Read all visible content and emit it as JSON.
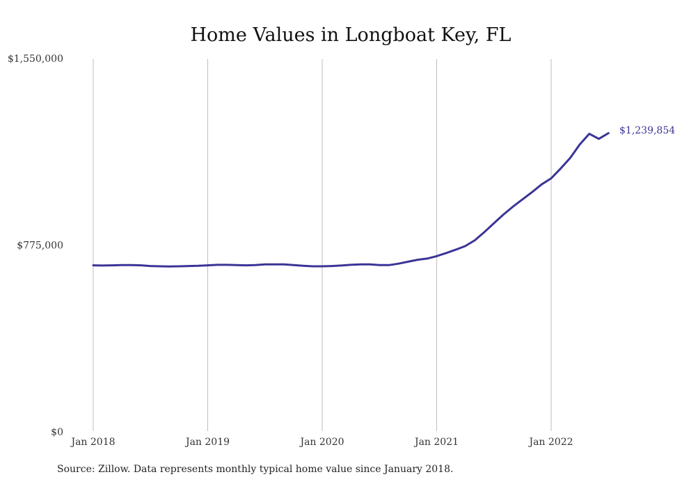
{
  "chart_data": {
    "type": "line",
    "title": "Home Values in Longboat Key, FL",
    "xlabel": "",
    "ylabel": "",
    "ylim": [
      0,
      1550000
    ],
    "y_ticks": [
      "$1,550,000",
      "$775,000",
      "$0"
    ],
    "y_tick_values": [
      1550000,
      775000,
      0
    ],
    "x_ticks": [
      "Jan 2018",
      "Jan 2019",
      "Jan 2020",
      "Jan 2021",
      "Jan 2022"
    ],
    "x_tick_values": [
      "2018-01",
      "2019-01",
      "2020-01",
      "2021-01",
      "2022-01"
    ],
    "grid": "vertical",
    "line_color": "#3a3496",
    "end_label": "$1,239,854",
    "series": [
      {
        "x": [
          "2018-01",
          "2018-02",
          "2018-03",
          "2018-04",
          "2018-05",
          "2018-06",
          "2018-07",
          "2018-08",
          "2018-09",
          "2018-10",
          "2018-11",
          "2018-12",
          "2019-01",
          "2019-02",
          "2019-03",
          "2019-04",
          "2019-05",
          "2019-06",
          "2019-07",
          "2019-08",
          "2019-09",
          "2019-10",
          "2019-11",
          "2019-12",
          "2020-01",
          "2020-02",
          "2020-03",
          "2020-04",
          "2020-05",
          "2020-06",
          "2020-07",
          "2020-08",
          "2020-09",
          "2020-10",
          "2020-11",
          "2020-12",
          "2021-01",
          "2021-02",
          "2021-03",
          "2021-04",
          "2021-05",
          "2021-06",
          "2021-07",
          "2021-08",
          "2021-09",
          "2021-10",
          "2021-11",
          "2021-12",
          "2022-01",
          "2022-02",
          "2022-03",
          "2022-04",
          "2022-05",
          "2022-06",
          "2022-07"
        ],
        "values": [
          691000,
          690000,
          691000,
          692000,
          692000,
          691000,
          688000,
          687000,
          686000,
          687000,
          688000,
          689000,
          691000,
          693000,
          693000,
          692000,
          691000,
          692000,
          695000,
          695000,
          695000,
          692000,
          689000,
          687000,
          687000,
          688000,
          690000,
          693000,
          695000,
          695000,
          692000,
          692000,
          698000,
          706000,
          714000,
          719000,
          729000,
          742000,
          756000,
          771000,
          795000,
          829000,
          866000,
          902000,
          935000,
          965000,
          995000,
          1027000,
          1052000,
          1093000,
          1137000,
          1193000,
          1237000,
          1216000,
          1239854
        ]
      }
    ]
  },
  "source_note": "Source: Zillow. Data represents monthly typical home value since January 2018."
}
